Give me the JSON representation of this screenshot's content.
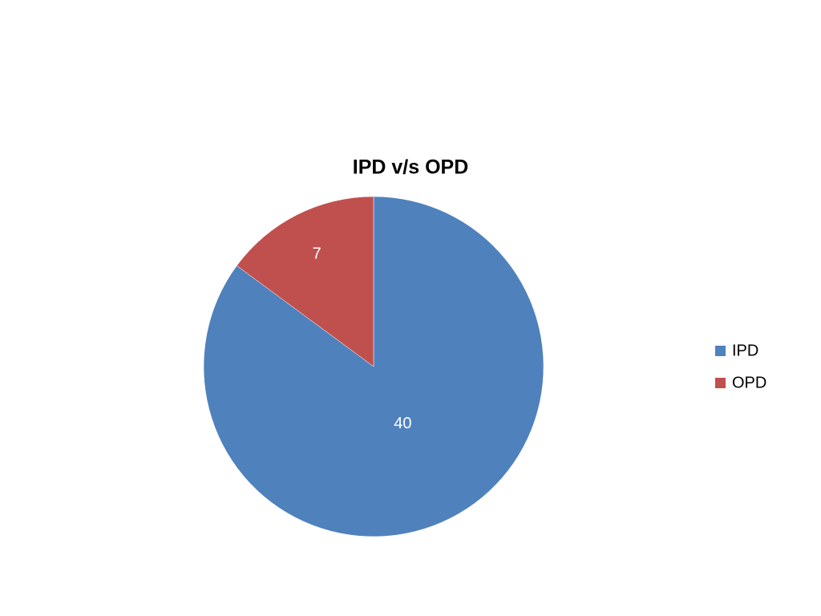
{
  "chart_data": {
    "type": "pie",
    "title": "IPD v/s OPD",
    "categories": [
      "IPD",
      "OPD"
    ],
    "values": [
      40,
      7
    ],
    "colors": [
      "#4f81bd",
      "#c0504d"
    ],
    "legend": "right"
  }
}
